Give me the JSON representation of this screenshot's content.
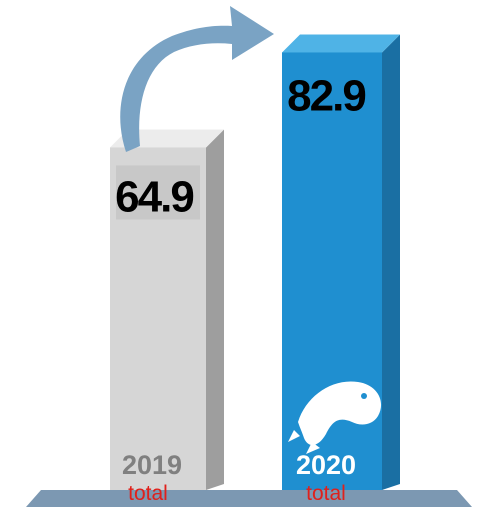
{
  "chart_data": {
    "type": "bar",
    "title": "",
    "xlabel": "",
    "ylabel": "",
    "categories": [
      "2019",
      "2020"
    ],
    "values": [
      64.9,
      82.9
    ],
    "value_labels": [
      "64.9",
      "82.9"
    ],
    "sublabels": [
      "total",
      "total"
    ],
    "ylim": [
      0,
      90
    ],
    "grid": false,
    "legend": "none",
    "bar_colors": [
      "#d6d6d6",
      "#1f8fd0"
    ],
    "side_colors": [
      "#9e9e9e",
      "#1a6fa3"
    ],
    "top_colors": [
      "#ececec",
      "#4fb3e6"
    ],
    "label_band_color": "#c8c8c8",
    "sublabel_color": "#e0201b",
    "year_colors": [
      "#808080",
      "#ffffff"
    ],
    "value_label_color": "#000000",
    "arrow_color": "#7aa3c4",
    "base_color": "#7c98b2",
    "arrow_direction": "2019 to 2020",
    "icon": "fish-icon"
  }
}
